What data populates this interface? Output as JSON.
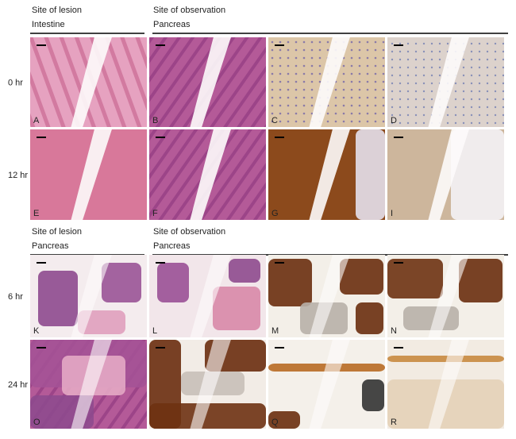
{
  "headers": [
    {
      "line1": "Site of lesion",
      "line2": "Intestine"
    },
    {
      "line1": "Site of observation",
      "line2": "Pancreas"
    },
    {
      "line1": "Site of lesion",
      "line2": "Pancreas"
    },
    {
      "line1": "Site of observation",
      "line2": "Pancreas"
    }
  ],
  "rows": [
    {
      "label": "0 hr",
      "panels": [
        "A",
        "B",
        "C",
        "D"
      ]
    },
    {
      "label": "12 hr",
      "panels": [
        "E",
        "F",
        "G",
        "I"
      ]
    },
    {
      "label": "6 hr",
      "panels": [
        "K",
        "L",
        "M",
        "N"
      ]
    },
    {
      "label": "24 hr",
      "panels": [
        "O",
        null,
        "Q",
        "R"
      ]
    }
  ]
}
